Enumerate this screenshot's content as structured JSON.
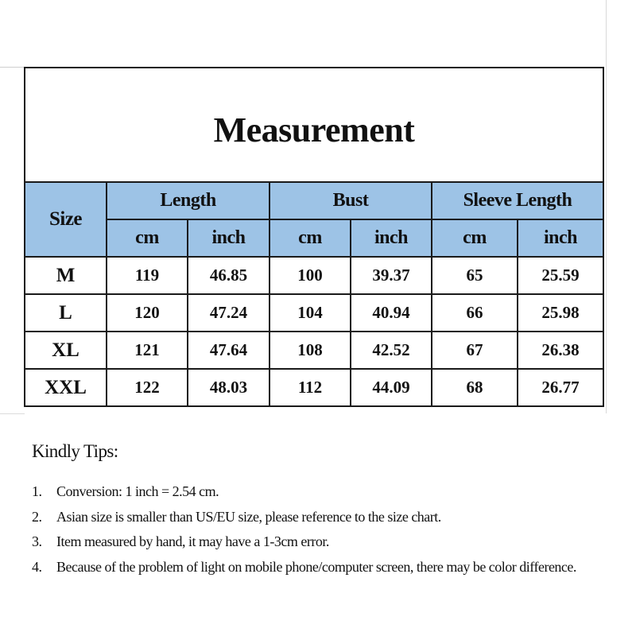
{
  "title": "Measurement",
  "header": {
    "size": "Size",
    "groups": [
      "Length",
      "Bust",
      "Sleeve Length"
    ],
    "units": [
      "cm",
      "inch",
      "cm",
      "inch",
      "cm",
      "inch"
    ]
  },
  "rows": [
    {
      "size": "M",
      "values": [
        "119",
        "46.85",
        "100",
        "39.37",
        "65",
        "25.59"
      ]
    },
    {
      "size": "L",
      "values": [
        "120",
        "47.24",
        "104",
        "40.94",
        "66",
        "25.98"
      ]
    },
    {
      "size": "XL",
      "values": [
        "121",
        "47.64",
        "108",
        "42.52",
        "67",
        "26.38"
      ]
    },
    {
      "size": "XXL",
      "values": [
        "122",
        "48.03",
        "112",
        "44.09",
        "68",
        "26.77"
      ]
    }
  ],
  "colors": {
    "header_bg": "#9dc3e6",
    "border": "#1a1a1a"
  },
  "tips": {
    "title": "Kindly Tips:",
    "items": [
      {
        "num": "1.",
        "text": "Conversion: 1 inch = 2.54 cm."
      },
      {
        "num": "2.",
        "text": "Asian size is smaller than US/EU size, please reference to the size chart."
      },
      {
        "num": "3.",
        "text": "Item measured by hand, it may have a 1-3cm error."
      },
      {
        "num": "4.",
        "text": "Because of the problem of light on mobile phone/computer screen, there may be color difference."
      }
    ]
  }
}
